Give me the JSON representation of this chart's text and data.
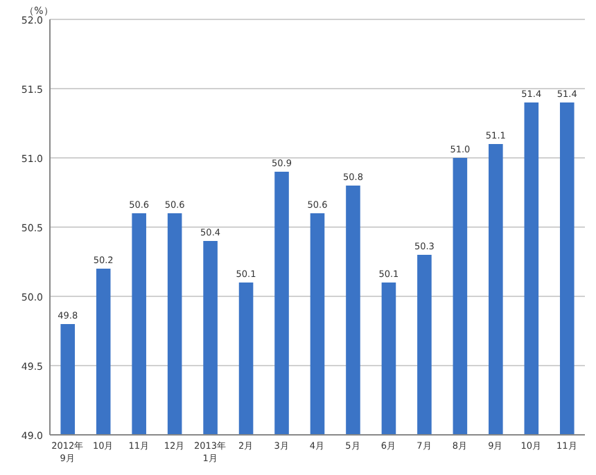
{
  "chart_data": {
    "type": "bar",
    "ylabel": "（%）",
    "categories": [
      "2012年 9月",
      "10月",
      "11月",
      "12月",
      "2013年 1月",
      "2月",
      "3月",
      "4月",
      "5月",
      "6月",
      "7月",
      "8月",
      "9月",
      "10月",
      "11月"
    ],
    "values": [
      49.8,
      50.2,
      50.6,
      50.6,
      50.4,
      50.1,
      50.9,
      50.6,
      50.8,
      50.1,
      50.3,
      51.0,
      51.1,
      51.4,
      51.4
    ],
    "value_labels": [
      "49.8",
      "50.2",
      "50.6",
      "50.6",
      "50.4",
      "50.1",
      "50.9",
      "50.6",
      "50.8",
      "50.1",
      "50.3",
      "51.0",
      "51.1",
      "51.4",
      "51.4"
    ],
    "color": "#3b74c6",
    "ylim": [
      49,
      52
    ],
    "yticks": [
      {
        "value": 49,
        "label": "49.0"
      },
      {
        "value": 49.5,
        "label": "49.5"
      },
      {
        "value": 50,
        "label": "50.0"
      },
      {
        "value": 50.5,
        "label": "50.5"
      },
      {
        "value": 51,
        "label": "51.0"
      },
      {
        "value": 51.5,
        "label": "51.5"
      },
      {
        "value": 52,
        "label": "52.0"
      }
    ],
    "grid": "y"
  }
}
